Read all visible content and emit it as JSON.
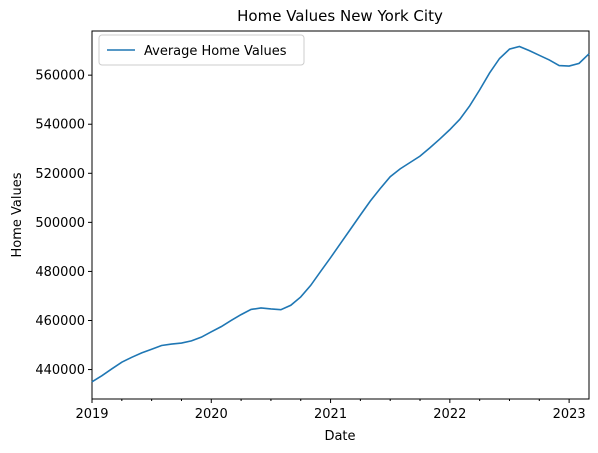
{
  "chart_data": {
    "type": "line",
    "title": "Home Values New York City",
    "xlabel": "Date",
    "ylabel": "Home Values",
    "xlim": [
      "2019-01",
      "2023-03"
    ],
    "ylim": [
      428000,
      578000
    ],
    "x_ticks": [
      "2019",
      "2020",
      "2021",
      "2022",
      "2023"
    ],
    "y_ticks": [
      440000,
      460000,
      480000,
      500000,
      520000,
      540000,
      560000
    ],
    "y_tick_labels": [
      "440000",
      "460000",
      "480000",
      "500000",
      "520000",
      "540000",
      "560000"
    ],
    "grid": false,
    "legend": {
      "position": "top-left"
    },
    "series": [
      {
        "name": "Average Home Values",
        "color": "#1f77b4",
        "x": [
          "2019-01",
          "2019-02",
          "2019-03",
          "2019-04",
          "2019-05",
          "2019-06",
          "2019-07",
          "2019-08",
          "2019-09",
          "2019-10",
          "2019-11",
          "2019-12",
          "2020-01",
          "2020-02",
          "2020-03",
          "2020-04",
          "2020-05",
          "2020-06",
          "2020-07",
          "2020-08",
          "2020-09",
          "2020-10",
          "2020-11",
          "2020-12",
          "2021-01",
          "2021-02",
          "2021-03",
          "2021-04",
          "2021-05",
          "2021-06",
          "2021-07",
          "2021-08",
          "2021-09",
          "2021-10",
          "2021-11",
          "2021-12",
          "2022-01",
          "2022-02",
          "2022-03",
          "2022-04",
          "2022-05",
          "2022-06",
          "2022-07",
          "2022-08",
          "2022-09",
          "2022-10",
          "2022-11",
          "2022-12",
          "2023-01",
          "2023-02",
          "2023-03"
        ],
        "values": [
          435000,
          437500,
          440300,
          443000,
          445000,
          446800,
          448300,
          449800,
          450400,
          450800,
          451700,
          453200,
          455400,
          457500,
          460000,
          462400,
          464500,
          465100,
          464700,
          464400,
          466200,
          469600,
          474300,
          480000,
          485600,
          491400,
          497200,
          503000,
          508700,
          513800,
          518600,
          521800,
          524400,
          527000,
          530400,
          534000,
          537800,
          542000,
          547500,
          554000,
          560900,
          566800,
          570600,
          571700,
          570000,
          568100,
          566200,
          563900,
          563700,
          564800,
          568700
        ]
      }
    ]
  }
}
